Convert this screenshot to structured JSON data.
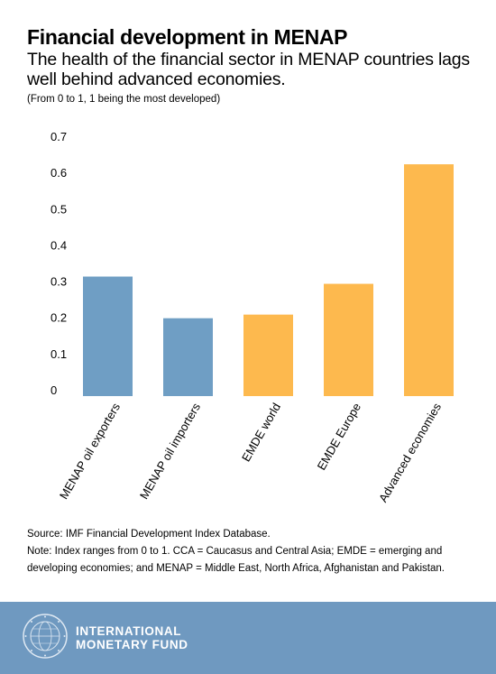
{
  "header": {
    "title": "Financial development in MENAP",
    "subtitle": "The health of the financial sector in MENAP countries lags well behind advanced economies.",
    "scale_note": "(From 0 to 1, 1 being the most developed)"
  },
  "chart_data": {
    "type": "bar",
    "categories": [
      "MENAP oil exporters",
      "MENAP oil importers",
      "EMDE world",
      "EMDE Europe",
      "Advanced economies"
    ],
    "values": [
      0.33,
      0.215,
      0.225,
      0.31,
      0.64
    ],
    "bar_colors": [
      "#6f9ec4",
      "#6f9ec4",
      "#fdb94e",
      "#fdb94e",
      "#fdb94e"
    ],
    "yticks": [
      0,
      0.1,
      0.2,
      0.3,
      0.4,
      0.5,
      0.6,
      0.7
    ],
    "ytick_labels": [
      "0",
      "0.1",
      "0.2",
      "0.3",
      "0.4",
      "0.5",
      "0.6",
      "0.7"
    ],
    "ylim": [
      0,
      0.7
    ],
    "xlabel": "",
    "ylabel": "",
    "grid": false,
    "legend": "none"
  },
  "notes": {
    "source": "Source: IMF Financial Development Index Database.",
    "note": "Note: Index ranges from 0 to 1. CCA = Caucasus and Central Asia; EMDE = emerging and developing economies; and MENAP = Middle East, North Africa, Afghanistan and Pakistan."
  },
  "footer": {
    "org_line1": "INTERNATIONAL",
    "org_line2": "MONETARY FUND",
    "background_color": "#6f99c0",
    "logo_icon": "imf-seal-icon",
    "seal_text": "INTERNATIONAL MONETARY FUND"
  }
}
